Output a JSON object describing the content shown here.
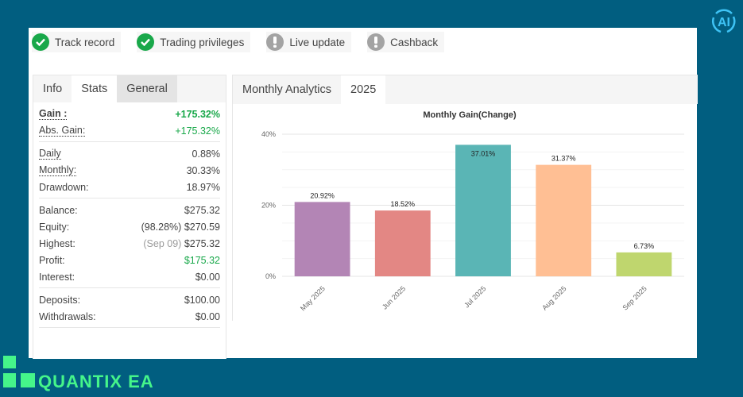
{
  "badges": [
    {
      "label": "Track record",
      "status": "ok"
    },
    {
      "label": "Trading privileges",
      "status": "ok"
    },
    {
      "label": "Live update",
      "status": "warn"
    },
    {
      "label": "Cashback",
      "status": "warn"
    }
  ],
  "stats_panel": {
    "tabs": [
      {
        "label": "Info"
      },
      {
        "label": "Stats"
      },
      {
        "label": "General"
      }
    ],
    "rows": {
      "gain": {
        "label": "Gain :",
        "value": "+175.32%"
      },
      "abs_gain": {
        "label": "Abs. Gain:",
        "value": "+175.32%"
      },
      "daily": {
        "label": "Daily",
        "value": "0.88%"
      },
      "monthly": {
        "label": "Monthly:",
        "value": "30.33%"
      },
      "drawdown": {
        "label": "Drawdown:",
        "value": "18.97%"
      },
      "balance": {
        "label": "Balance:",
        "value": "$275.32"
      },
      "equity": {
        "label": "Equity:",
        "note": "(98.28%)",
        "value": "$270.59"
      },
      "highest": {
        "label": "Highest:",
        "note": "(Sep 09)",
        "value": "$275.32"
      },
      "profit": {
        "label": "Profit:",
        "value": "$175.32"
      },
      "interest": {
        "label": "Interest:",
        "value": "$0.00"
      },
      "deposits": {
        "label": "Deposits:",
        "value": "$100.00"
      },
      "withdrawals": {
        "label": "Withdrawals:",
        "value": "$0.00"
      }
    }
  },
  "analytics": {
    "tabs": [
      {
        "label": "Monthly Analytics"
      },
      {
        "label": "2025"
      }
    ]
  },
  "chart_data": {
    "type": "bar",
    "title": "Monthly Gain(Change)",
    "categories": [
      "May 2025",
      "Jun 2025",
      "Jul 2025",
      "Aug 2025",
      "Sep 2025"
    ],
    "values": [
      20.92,
      18.52,
      37.01,
      31.37,
      6.73
    ],
    "data_labels": [
      "20.92%",
      "18.52%",
      "37.01%",
      "31.37%",
      "6.73%"
    ],
    "colors": [
      "#b385b5",
      "#e38784",
      "#5ab5b5",
      "#ffbf94",
      "#bfd66e"
    ],
    "yticks": [
      0,
      20,
      40
    ],
    "ytick_labels": [
      "0%",
      "20%",
      "40%"
    ],
    "ylim": [
      0,
      40
    ],
    "xlabel": "",
    "ylabel": "",
    "grid": true
  },
  "brand": {
    "name": "QUANTIX EA",
    "ai_badge": "AI",
    "colors": {
      "background": "#015e80",
      "accent": "#45f58a",
      "ai": "#3ec3f5"
    }
  }
}
